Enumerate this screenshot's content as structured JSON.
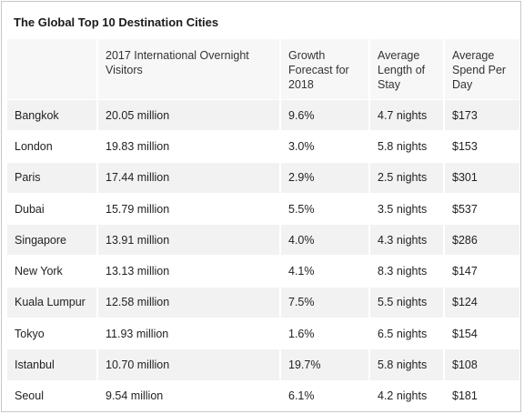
{
  "title": "The Global Top 10 Destination Cities",
  "table": {
    "headers": [
      "",
      "2017 International Overnight Visitors",
      "Growth Forecast for 2018",
      "Average Length of Stay",
      "Average Spend Per Day"
    ],
    "rows": [
      [
        "Bangkok",
        "20.05 million",
        "9.6%",
        "4.7 nights",
        "$173"
      ],
      [
        "London",
        "19.83 million",
        "3.0%",
        "5.8 nights",
        "$153"
      ],
      [
        "Paris",
        "17.44 million",
        "2.9%",
        "2.5 nights",
        "$301"
      ],
      [
        "Dubai",
        "15.79 million",
        "5.5%",
        "3.5 nights",
        "$537"
      ],
      [
        "Singapore",
        "13.91 million",
        "4.0%",
        "4.3 nights",
        "$286"
      ],
      [
        "New York",
        "13.13 million",
        "4.1%",
        "8.3 nights",
        "$147"
      ],
      [
        "Kuala Lumpur",
        "12.58 million",
        "7.5%",
        "5.5 nights",
        "$124"
      ],
      [
        "Tokyo",
        "11.93 million",
        "1.6%",
        "6.5 nights",
        "$154"
      ],
      [
        "Istanbul",
        "10.70 million",
        "19.7%",
        "5.8 nights",
        "$108"
      ],
      [
        "Seoul",
        "9.54 million",
        "6.1%",
        "4.2 nights",
        "$181"
      ]
    ]
  }
}
